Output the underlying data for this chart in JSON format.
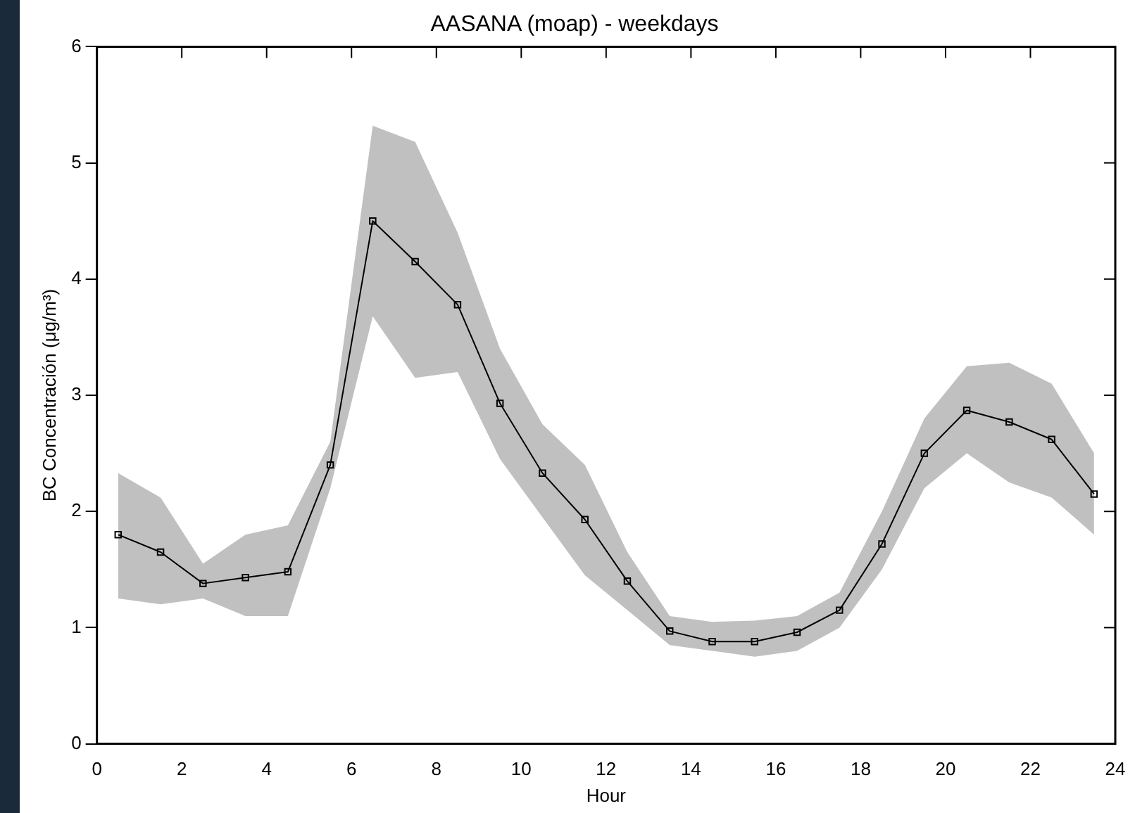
{
  "chart_data": {
    "type": "line",
    "title": "AASANA (moap) - weekdays",
    "xlabel": "Hour",
    "ylabel": "BC Concentración (μg/m³)",
    "x": [
      0.5,
      1.5,
      2.5,
      3.5,
      4.5,
      5.5,
      6.5,
      7.5,
      8.5,
      9.5,
      10.5,
      11.5,
      12.5,
      13.5,
      14.5,
      15.5,
      16.5,
      17.5,
      18.5,
      19.5,
      20.5,
      21.5,
      22.5,
      23.5
    ],
    "series": [
      {
        "color": "#000000",
        "values": [
          1.8,
          1.65,
          1.38,
          1.43,
          1.48,
          2.4,
          4.5,
          4.15,
          3.78,
          2.93,
          2.33,
          1.93,
          1.4,
          0.97,
          0.88,
          0.88,
          0.96,
          1.15,
          1.72,
          2.5,
          2.87,
          2.77,
          2.62,
          2.15
        ],
        "lower": [
          1.25,
          1.2,
          1.25,
          1.1,
          1.1,
          2.2,
          3.68,
          3.15,
          3.2,
          2.45,
          1.95,
          1.45,
          1.15,
          0.85,
          0.8,
          0.75,
          0.8,
          1.0,
          1.5,
          2.2,
          2.5,
          2.25,
          2.12,
          1.8
        ],
        "upper": [
          2.33,
          2.12,
          1.55,
          1.8,
          1.88,
          2.6,
          5.32,
          5.18,
          4.4,
          3.4,
          2.75,
          2.4,
          1.65,
          1.1,
          1.05,
          1.06,
          1.1,
          1.3,
          2.0,
          2.8,
          3.25,
          3.28,
          3.1,
          2.5
        ]
      }
    ],
    "xlim": [
      0,
      24
    ],
    "xticks": [
      0,
      2,
      4,
      6,
      8,
      10,
      12,
      14,
      16,
      18,
      20,
      22,
      24
    ],
    "ylim": [
      0,
      6
    ],
    "yticks": [
      0,
      1,
      2,
      3,
      4,
      5,
      6
    ],
    "grid": false,
    "legend": false,
    "marker": "square",
    "line_style": "solid"
  }
}
